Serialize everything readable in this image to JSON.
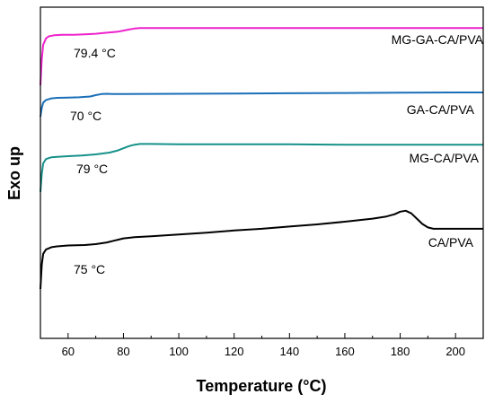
{
  "chart_data": {
    "type": "line",
    "title": "",
    "xlabel": "Temperature (°C)",
    "ylabel": "Exo up",
    "xlim": [
      50,
      210
    ],
    "x_ticks": [
      60,
      80,
      100,
      120,
      140,
      160,
      180,
      200
    ],
    "y_ticks_shown": false,
    "grid": false,
    "legend": "none",
    "series": [
      {
        "name": "MG-GA-CA/PVA",
        "color": "#ee22cc",
        "annotation": "79.4 °C",
        "x": [
          50,
          50.5,
          51,
          52,
          53,
          55,
          58,
          62,
          66,
          70,
          74,
          78,
          80,
          82,
          84,
          86,
          90,
          100,
          120,
          140,
          160,
          180,
          200,
          210
        ],
        "y": [
          0.0,
          0.5,
          0.78,
          0.9,
          0.94,
          0.96,
          0.97,
          0.97,
          0.98,
          0.99,
          1.01,
          1.03,
          1.05,
          1.07,
          1.09,
          1.1,
          1.1,
          1.1,
          1.1,
          1.1,
          1.1,
          1.1,
          1.1,
          1.1
        ]
      },
      {
        "name": "GA-CA/PVA",
        "color": "#1a6fb8",
        "annotation": "70 °C",
        "x": [
          50,
          50.5,
          51,
          52,
          54,
          56,
          60,
          64,
          68,
          70,
          72,
          74,
          76,
          80,
          100,
          120,
          140,
          160,
          180,
          200,
          210
        ],
        "y": [
          0.0,
          0.32,
          0.52,
          0.62,
          0.68,
          0.7,
          0.71,
          0.72,
          0.75,
          0.8,
          0.84,
          0.85,
          0.84,
          0.84,
          0.85,
          0.86,
          0.87,
          0.88,
          0.89,
          0.9,
          0.9
        ]
      },
      {
        "name": "MG-CA/PVA",
        "color": "#16918a",
        "annotation": "79 °C",
        "x": [
          50,
          50.5,
          51,
          52,
          54,
          56,
          60,
          65,
          70,
          75,
          78,
          80,
          82,
          84,
          86,
          90,
          100,
          120,
          140,
          160,
          180,
          200,
          210
        ],
        "y": [
          0.0,
          0.5,
          0.8,
          0.92,
          0.97,
          0.98,
          1.0,
          1.02,
          1.05,
          1.1,
          1.16,
          1.22,
          1.28,
          1.32,
          1.34,
          1.34,
          1.33,
          1.33,
          1.33,
          1.32,
          1.32,
          1.32,
          1.32
        ]
      },
      {
        "name": "CA/PVA",
        "color": "#000000",
        "annotation": "75 °C",
        "x": [
          50,
          50.5,
          51,
          52,
          54,
          56,
          60,
          66,
          70,
          74,
          78,
          80,
          84,
          90,
          100,
          110,
          120,
          130,
          140,
          150,
          160,
          170,
          175,
          178,
          180,
          182,
          184,
          186,
          188,
          190,
          192,
          196,
          200,
          210
        ],
        "y": [
          0.0,
          0.55,
          0.8,
          0.9,
          0.95,
          0.97,
          0.99,
          1.0,
          1.02,
          1.06,
          1.12,
          1.15,
          1.18,
          1.2,
          1.24,
          1.28,
          1.33,
          1.37,
          1.42,
          1.47,
          1.53,
          1.6,
          1.65,
          1.7,
          1.76,
          1.78,
          1.72,
          1.6,
          1.48,
          1.4,
          1.37,
          1.37,
          1.37,
          1.37
        ]
      }
    ]
  }
}
